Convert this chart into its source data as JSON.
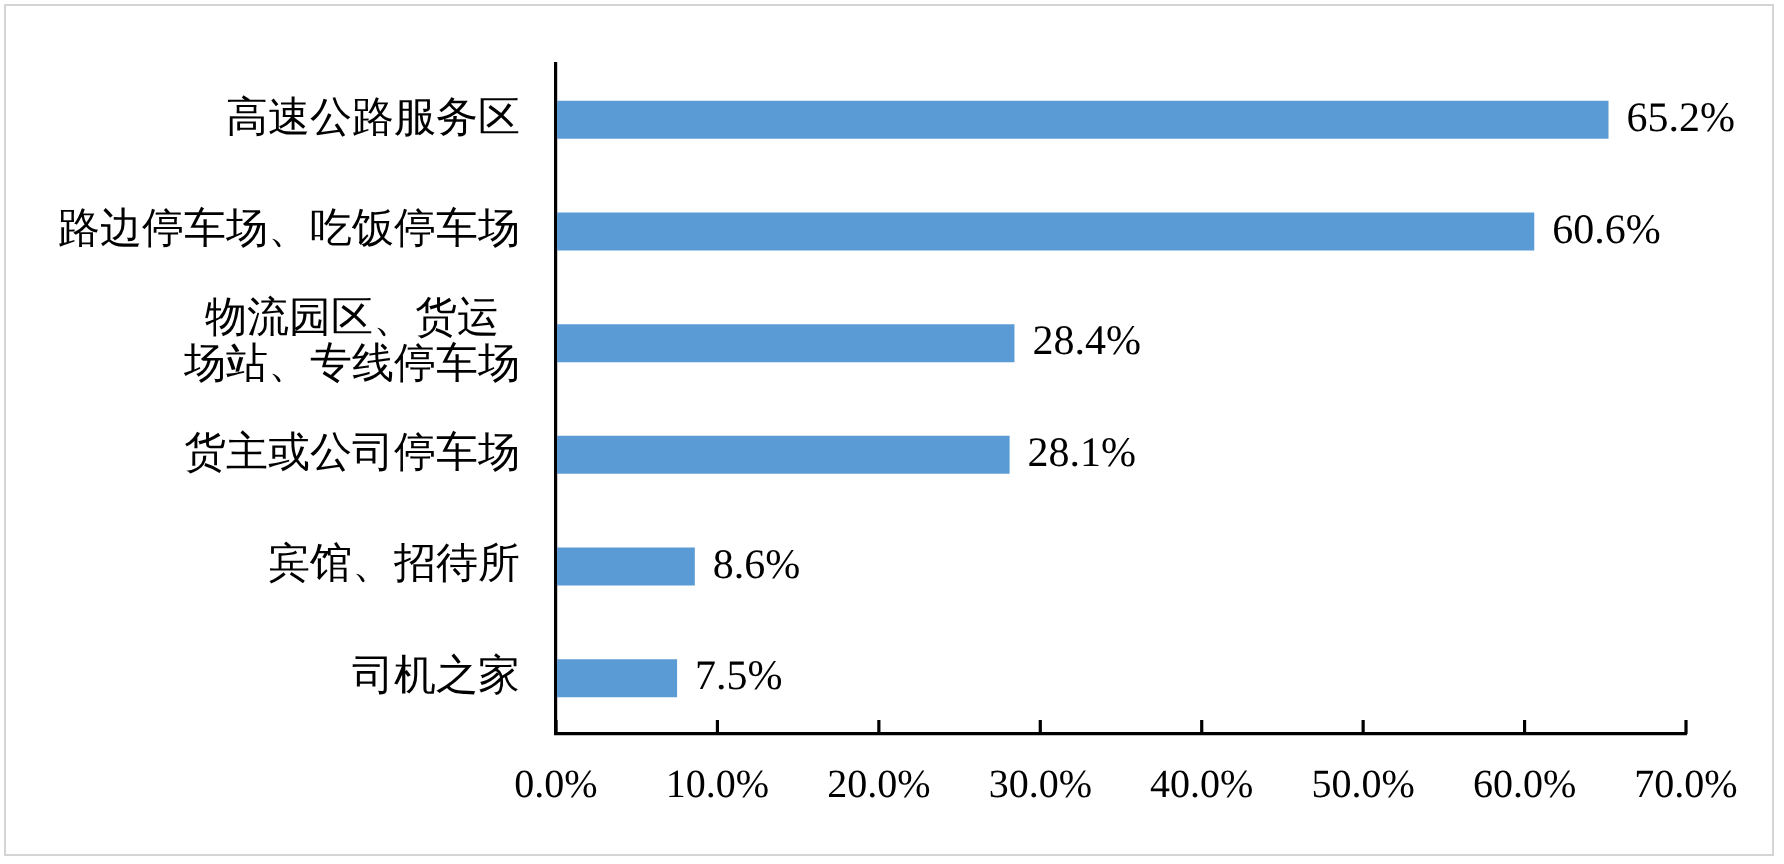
{
  "chart_data": {
    "type": "bar",
    "orientation": "horizontal",
    "categories": [
      "高速公路服务区",
      "路边停车场、吃饭停车场",
      "物流园区、货运场站、专线停车场",
      "货主或公司停车场",
      "宾馆、招待所",
      "司机之家"
    ],
    "values": [
      65.2,
      60.6,
      28.4,
      28.1,
      8.6,
      7.5
    ],
    "value_labels": [
      "65.2%",
      "60.6%",
      "28.4%",
      "28.1%",
      "8.6%",
      "7.5%"
    ],
    "color": "#5b9bd5",
    "xlim": [
      0,
      70
    ],
    "xticks": [
      {
        "value": 0,
        "label": "0.0%"
      },
      {
        "value": 10,
        "label": "10.0%"
      },
      {
        "value": 20,
        "label": "20.0%"
      },
      {
        "value": 30,
        "label": "30.0%"
      },
      {
        "value": 40,
        "label": "40.0%"
      },
      {
        "value": 50,
        "label": "50.0%"
      },
      {
        "value": 60,
        "label": "60.0%"
      },
      {
        "value": 70,
        "label": "70.0%"
      }
    ]
  }
}
